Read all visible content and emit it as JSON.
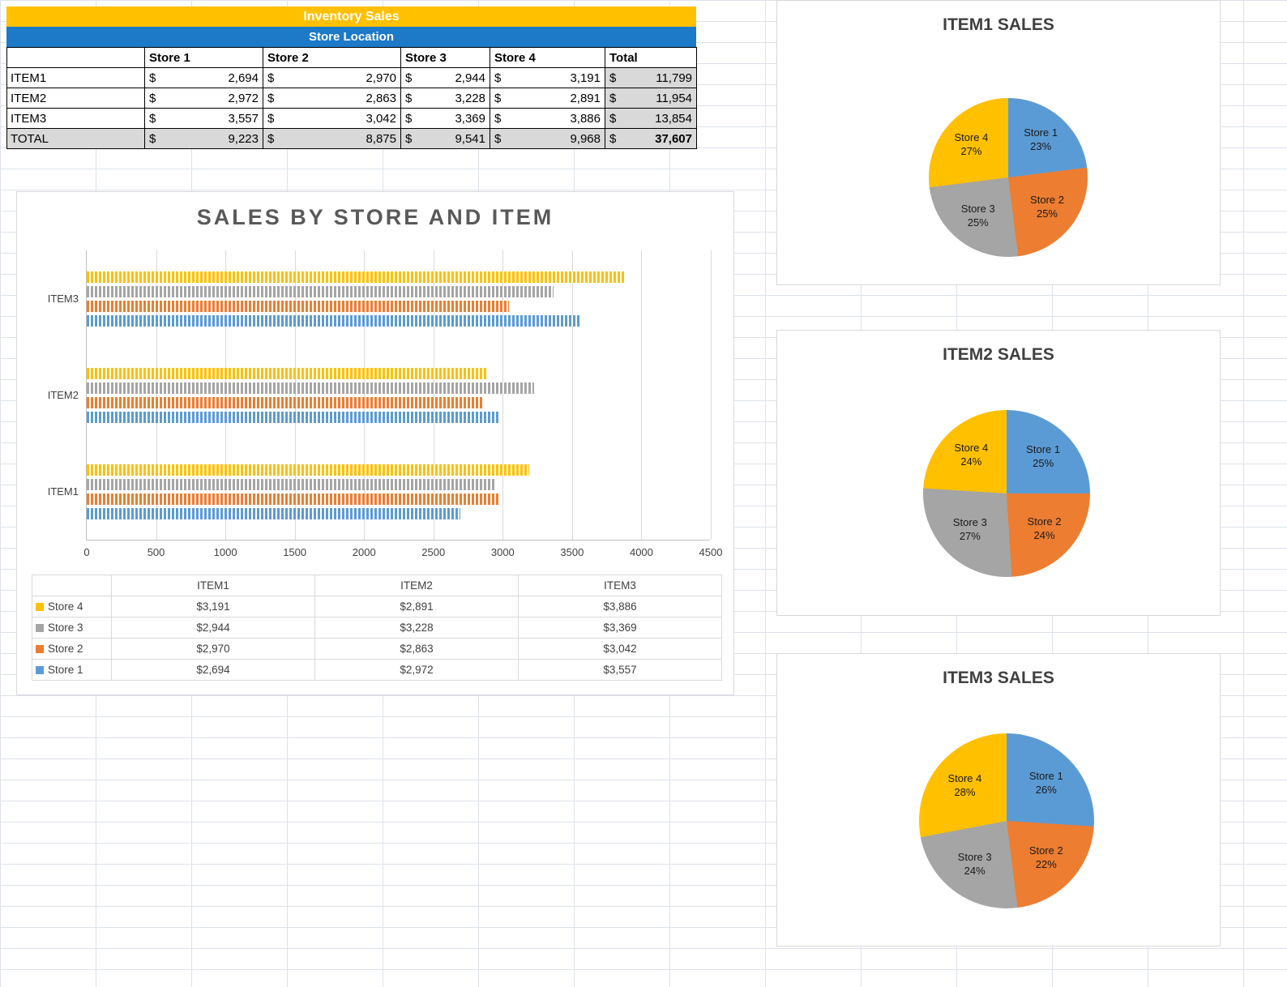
{
  "colors": {
    "store1": "#5B9BD5",
    "store2": "#ED7D31",
    "store3": "#A5A5A5",
    "store4": "#FFC000",
    "title_bar": "#FFC000",
    "subtitle_bar": "#1C7AC8",
    "shaded_cell": "#D9D9D9"
  },
  "summary_table": {
    "title": "Inventory Sales",
    "subtitle": "Store Location",
    "currency_symbol": "$",
    "columns": [
      "Store 1",
      "Store 2",
      "Store 3",
      "Store 4",
      "Total"
    ],
    "rows": [
      {
        "label": "ITEM1",
        "values": [
          "2,694",
          "2,970",
          "2,944",
          "3,191",
          "11,799"
        ],
        "is_total": false
      },
      {
        "label": "ITEM2",
        "values": [
          "2,972",
          "2,863",
          "3,228",
          "2,891",
          "11,954"
        ],
        "is_total": false
      },
      {
        "label": "ITEM3",
        "values": [
          "3,557",
          "3,042",
          "3,369",
          "3,886",
          "13,854"
        ],
        "is_total": false
      },
      {
        "label": "TOTAL",
        "values": [
          "9,223",
          "8,875",
          "9,541",
          "9,968",
          "37,607"
        ],
        "is_total": true
      }
    ]
  },
  "chart_data": [
    {
      "type": "bar",
      "orientation": "horizontal",
      "title": "SALES BY STORE AND ITEM",
      "categories": [
        "ITEM1",
        "ITEM2",
        "ITEM3"
      ],
      "series": [
        {
          "name": "Store 1",
          "color": "#5B9BD5",
          "values": [
            2694,
            2972,
            3557
          ]
        },
        {
          "name": "Store 2",
          "color": "#ED7D31",
          "values": [
            2970,
            2863,
            3042
          ]
        },
        {
          "name": "Store 3",
          "color": "#A5A5A5",
          "values": [
            2944,
            3228,
            3369
          ]
        },
        {
          "name": "Store 4",
          "color": "#FFC000",
          "values": [
            3191,
            2891,
            3886
          ]
        }
      ],
      "xlim": [
        0,
        4500
      ],
      "x_ticks": [
        0,
        500,
        1000,
        1500,
        2000,
        2500,
        3000,
        3500,
        4000,
        4500
      ],
      "grid": true,
      "legend_position": "table-bottom",
      "legend_rows": [
        {
          "name": "Store 4",
          "color": "#FFC000",
          "values": [
            "$3,191",
            "$2,891",
            "$3,886"
          ]
        },
        {
          "name": "Store 3",
          "color": "#A5A5A5",
          "values": [
            "$2,944",
            "$3,228",
            "$3,369"
          ]
        },
        {
          "name": "Store 2",
          "color": "#ED7D31",
          "values": [
            "$2,970",
            "$2,863",
            "$3,042"
          ]
        },
        {
          "name": "Store 1",
          "color": "#5B9BD5",
          "values": [
            "$2,694",
            "$2,972",
            "$3,557"
          ]
        }
      ]
    },
    {
      "type": "pie",
      "title": "ITEM1 SALES",
      "slices": [
        {
          "label": "Store 1",
          "pct": 23,
          "color": "#5B9BD5"
        },
        {
          "label": "Store 2",
          "pct": 25,
          "color": "#ED7D31"
        },
        {
          "label": "Store 3",
          "pct": 25,
          "color": "#A5A5A5"
        },
        {
          "label": "Store 4",
          "pct": 27,
          "color": "#FFC000"
        }
      ]
    },
    {
      "type": "pie",
      "title": "ITEM2 SALES",
      "slices": [
        {
          "label": "Store 1",
          "pct": 25,
          "color": "#5B9BD5"
        },
        {
          "label": "Store 2",
          "pct": 24,
          "color": "#ED7D31"
        },
        {
          "label": "Store 3",
          "pct": 27,
          "color": "#A5A5A5"
        },
        {
          "label": "Store 4",
          "pct": 24,
          "color": "#FFC000"
        }
      ]
    },
    {
      "type": "pie",
      "title": "ITEM3 SALES",
      "slices": [
        {
          "label": "Store 1",
          "pct": 26,
          "color": "#5B9BD5"
        },
        {
          "label": "Store 2",
          "pct": 22,
          "color": "#ED7D31"
        },
        {
          "label": "Store 3",
          "pct": 24,
          "color": "#A5A5A5"
        },
        {
          "label": "Store 4",
          "pct": 28,
          "color": "#FFC000"
        }
      ]
    }
  ]
}
